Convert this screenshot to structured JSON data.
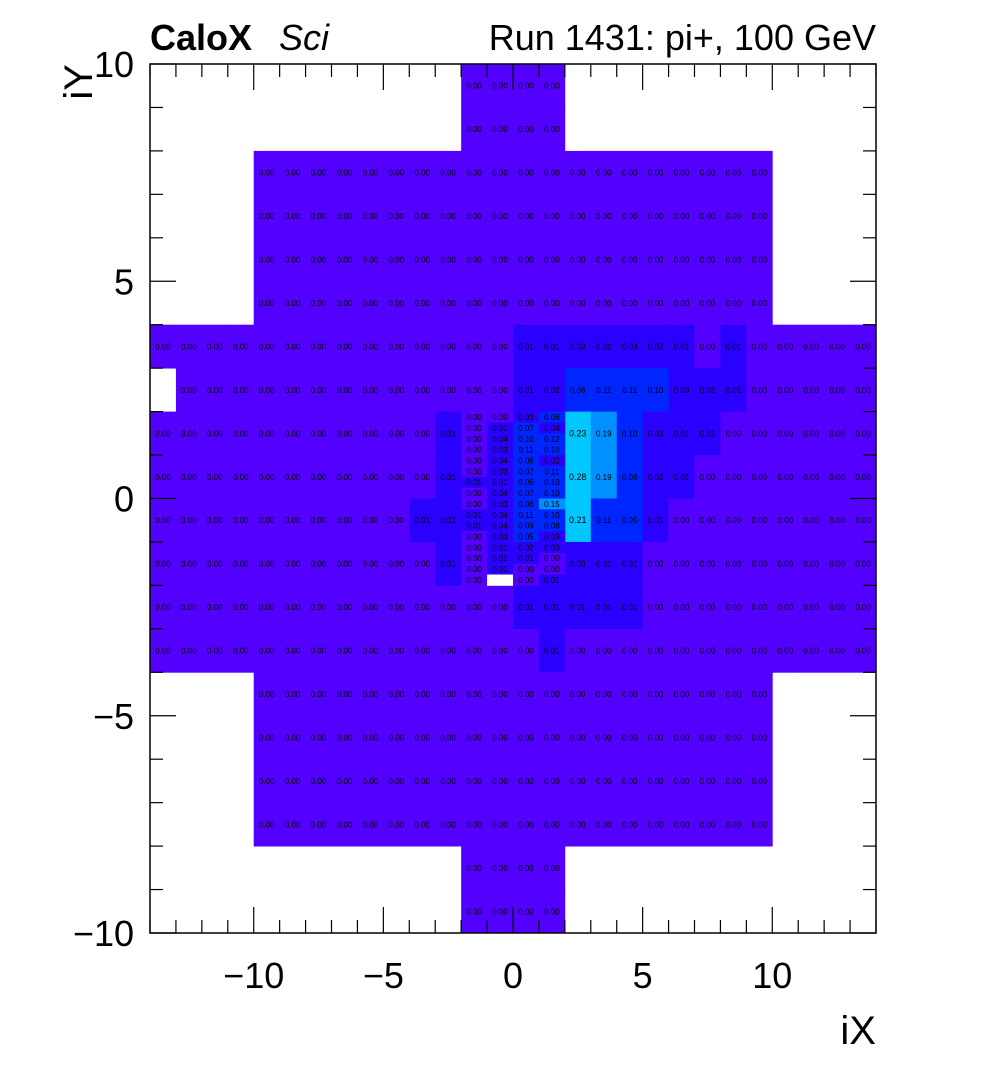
{
  "chart_data": {
    "type": "heatmap",
    "header": {
      "brand": "CaloX",
      "brand_sub": "Sci",
      "run": "Run 1431: pi+, 100 GeV"
    },
    "xlabel": "iX",
    "ylabel": "iY",
    "xlim": [
      -14,
      14
    ],
    "ylim": [
      -10,
      10
    ],
    "xticks": [
      -10,
      -5,
      0,
      5,
      10
    ],
    "yticks": [
      -10,
      -5,
      0,
      5,
      10
    ],
    "xtick_labels": [
      "−10",
      "−5",
      "0",
      "5",
      "10"
    ],
    "ytick_labels": [
      "−10",
      "−5",
      "0",
      "5",
      "10"
    ],
    "colors": {
      "zero": "#5400ff",
      "low": "#2a00ff",
      "mid": "#0026ff",
      "high": "#00c8ff"
    },
    "coarse_cells": [
      {
        "x": -2,
        "y": 9,
        "v": [
          0.0,
          0.0,
          0.0,
          0.0
        ]
      },
      {
        "x": -2,
        "y": 8,
        "v": [
          0.0,
          0.0,
          0.0,
          0.0
        ]
      },
      {
        "x": -10,
        "y": 7,
        "v": [
          0,
          0,
          0,
          0,
          0,
          0,
          0,
          0,
          0,
          0,
          0,
          0,
          0,
          0,
          0,
          0,
          0,
          0,
          0,
          0
        ]
      },
      {
        "x": -10,
        "y": 6,
        "v": [
          0,
          0,
          0,
          0,
          0,
          0,
          0,
          0,
          0,
          0,
          0,
          0,
          0,
          0,
          0,
          0,
          0,
          0,
          0,
          0
        ]
      },
      {
        "x": -10,
        "y": 5,
        "v": [
          0,
          0,
          0,
          0,
          0,
          0,
          0,
          0,
          0,
          0,
          0,
          0,
          0,
          0,
          0,
          0,
          0,
          0,
          0,
          0
        ]
      },
      {
        "x": -10,
        "y": 4,
        "v": [
          0,
          0,
          0,
          0,
          0,
          0,
          0,
          0,
          0,
          0,
          0,
          0,
          0,
          0,
          0,
          0,
          0,
          0,
          0,
          0
        ]
      },
      {
        "x": -14,
        "y": 3,
        "v": [
          0,
          0,
          0,
          0,
          0,
          0,
          0,
          0,
          0,
          0,
          0,
          0,
          0,
          0,
          0.01,
          0.01,
          0.02,
          0.02,
          0.03,
          0.02,
          0.01,
          0,
          0.01,
          0,
          0,
          0,
          0,
          0
        ]
      },
      {
        "x": -13,
        "y": 2,
        "v": [
          0,
          0,
          0,
          0,
          0,
          0,
          0,
          0,
          0,
          0,
          0,
          0,
          0,
          0.01,
          0.02,
          0.06,
          0.11,
          0.11,
          0.1,
          0.03,
          0.02,
          0.01,
          0,
          0,
          0,
          0,
          0
        ]
      },
      {
        "x": -14,
        "y": 1,
        "v": [
          0,
          0,
          0,
          0,
          0,
          0,
          0,
          0,
          0,
          0,
          0,
          0.01
        ]
      },
      {
        "x": 2,
        "y": 1,
        "v": [
          0.23,
          0.19,
          0.1,
          0.03,
          0.01,
          0.01,
          0,
          0,
          0,
          0,
          0,
          0
        ]
      },
      {
        "x": -14,
        "y": 0,
        "v": [
          0,
          0,
          0,
          0,
          0,
          0,
          0,
          0,
          0,
          0,
          0,
          0.01
        ]
      },
      {
        "x": 2,
        "y": 0,
        "v": [
          0.28,
          0.19,
          0.08,
          0.02,
          0.01,
          0,
          0,
          0,
          0,
          0,
          0,
          0
        ]
      },
      {
        "x": -14,
        "y": -1,
        "v": [
          0,
          0,
          0,
          0,
          0,
          0,
          0,
          0,
          0,
          0,
          0.01,
          0.01
        ]
      },
      {
        "x": 2,
        "y": -1,
        "v": [
          0.21,
          0.11,
          0.05,
          0.01,
          0,
          0,
          0,
          0,
          0,
          0,
          0,
          0
        ]
      },
      {
        "x": -14,
        "y": -2,
        "v": [
          0,
          0,
          0,
          0,
          0,
          0,
          0,
          0,
          0,
          0,
          0,
          0.01
        ]
      },
      {
        "x": 2,
        "y": -2,
        "v": [
          0.03,
          0.01,
          0.01,
          0,
          0,
          0,
          0,
          0,
          0,
          0,
          0,
          0
        ]
      },
      {
        "x": -14,
        "y": -3,
        "v": [
          0,
          0,
          0,
          0,
          0,
          0,
          0,
          0,
          0,
          0,
          0,
          0,
          0,
          0,
          0.01,
          0.01,
          0.01,
          0.01,
          0.01,
          0,
          0,
          0,
          0,
          0,
          0,
          0,
          0,
          0
        ]
      },
      {
        "x": -14,
        "y": -4,
        "v": [
          0,
          0,
          0,
          0,
          0,
          0,
          0,
          0,
          0,
          0,
          0,
          0,
          0,
          0,
          0,
          0.01,
          0,
          0,
          0,
          0,
          0,
          0,
          0,
          0,
          0,
          0,
          0,
          0
        ]
      },
      {
        "x": -10,
        "y": -5,
        "v": [
          0,
          0,
          0,
          0,
          0,
          0,
          0,
          0,
          0,
          0,
          0,
          0,
          0,
          0,
          0,
          0,
          0,
          0,
          0,
          0
        ]
      },
      {
        "x": -10,
        "y": -6,
        "v": [
          0,
          0,
          0,
          0,
          0,
          0,
          0,
          0,
          0,
          0,
          0,
          0,
          0,
          0,
          0,
          0,
          0,
          0,
          0,
          0
        ]
      },
      {
        "x": -10,
        "y": -7,
        "v": [
          0,
          0,
          0,
          0,
          0,
          0,
          0,
          0,
          0,
          0,
          0,
          0,
          0,
          0,
          0,
          0,
          0,
          0,
          0,
          0
        ]
      },
      {
        "x": -10,
        "y": -8,
        "v": [
          0,
          0,
          0,
          0,
          0,
          0,
          0,
          0,
          0,
          0,
          0,
          0,
          0,
          0,
          0,
          0,
          0,
          0,
          0,
          0
        ]
      },
      {
        "x": -2,
        "y": -9,
        "v": [
          0.0,
          0.0,
          0.0,
          0.0
        ]
      },
      {
        "x": -2,
        "y": -10,
        "v": [
          0.0,
          0.0,
          0.0,
          0.0
        ]
      }
    ],
    "fine_block": {
      "x0": -2,
      "x1": 2,
      "y_top": 2,
      "y_bottom": -2,
      "rows": [
        [
          0.0,
          0.0,
          0.03,
          0.06
        ],
        [
          0.0,
          0.01,
          0.07,
          0.04
        ],
        [
          0.0,
          0.04,
          0.1,
          0.12
        ],
        [
          0.0,
          0.03,
          0.11,
          0.1
        ],
        [
          0.0,
          0.04,
          0.08,
          0.02
        ],
        [
          0.0,
          0.03,
          0.07,
          0.11
        ],
        [
          0.01,
          0.01,
          0.06,
          0.1
        ],
        [
          0.0,
          0.04,
          0.07,
          0.1
        ],
        [
          0.0,
          0.03,
          0.06,
          0.15
        ],
        [
          0.01,
          0.04,
          0.11,
          0.1
        ],
        [
          0.01,
          0.04,
          0.09,
          0.08
        ],
        [
          0.0,
          0.03,
          0.05,
          0.03
        ],
        [
          0.0,
          0.01,
          0.02,
          0.03
        ],
        [
          0.0,
          0.01,
          0.01,
          0.0
        ],
        [
          0.0,
          0.01,
          0.0,
          0.0
        ],
        [
          0.0,
          null,
          0.0,
          0.01
        ]
      ]
    },
    "empty_cells": [
      {
        "x": -14,
        "y": 2,
        "w": 1,
        "h": 1
      }
    ],
    "decimals": 2
  }
}
